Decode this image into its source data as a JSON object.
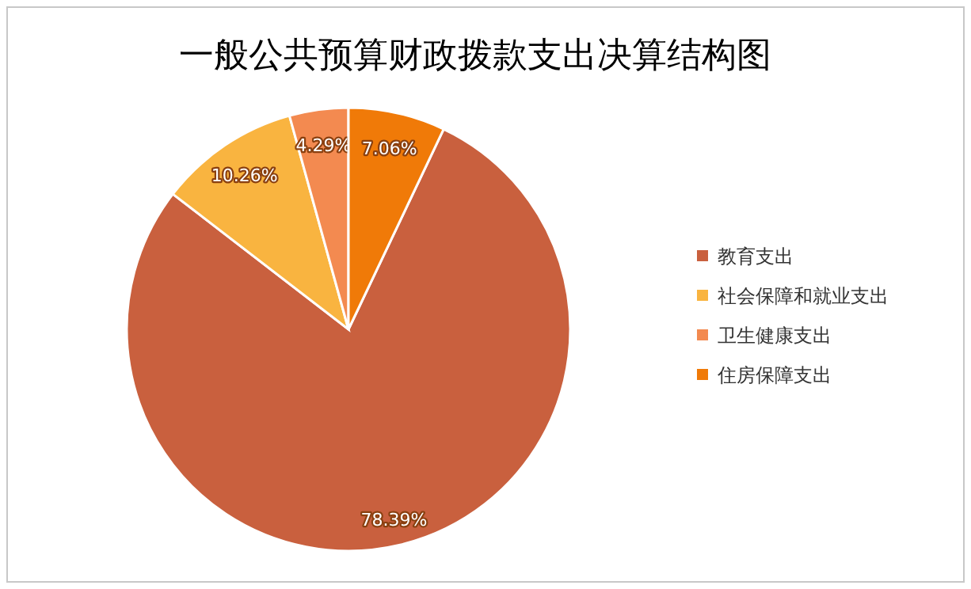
{
  "chart_data": {
    "type": "pie",
    "title": "一般公共预算财政拨款支出决算结构图",
    "categories": [
      "教育支出",
      "社会保障和就业支出",
      "卫生健康支出",
      "住房保障支出"
    ],
    "values": [
      78.39,
      10.26,
      4.29,
      7.06
    ],
    "value_labels": [
      "78.39%",
      "10.26%",
      "4.29%",
      "7.06%"
    ],
    "colors": [
      "#c9603e",
      "#f9b440",
      "#f38a50",
      "#f07a08"
    ],
    "legend": "right"
  }
}
